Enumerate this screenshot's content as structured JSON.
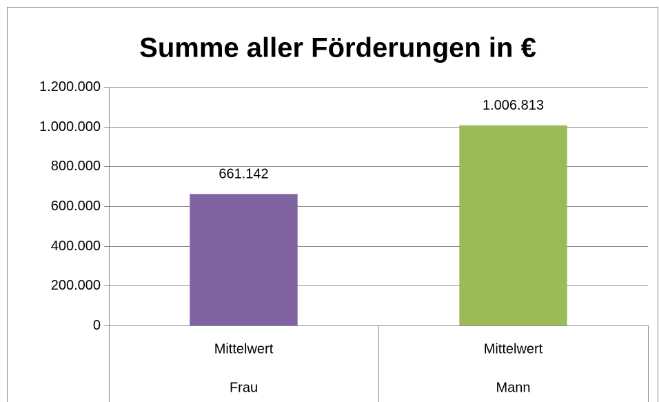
{
  "chart_data": {
    "type": "bar",
    "title": "Summe aller Förderungen in €",
    "categories": [
      "Frau",
      "Mann"
    ],
    "category_sublabels": [
      "Mittelwert",
      "Mittelwert"
    ],
    "values": [
      661142,
      1006813
    ],
    "value_labels": [
      "661.142",
      "1.006.813"
    ],
    "colors": [
      "#8064a2",
      "#9bbb59"
    ],
    "ylim": [
      0,
      1200000
    ],
    "yticks": [
      0,
      {
        "value": 200000,
        "label": "200.000"
      },
      {
        "value": 400000,
        "label": "400.000"
      },
      {
        "value": 600000,
        "label": "600.000"
      },
      {
        "value": 800000,
        "label": "800.000"
      },
      {
        "value": 1000000,
        "label": "1.000.000"
      },
      {
        "value": 1200000,
        "label": "1.200.000"
      }
    ],
    "grid": true
  }
}
